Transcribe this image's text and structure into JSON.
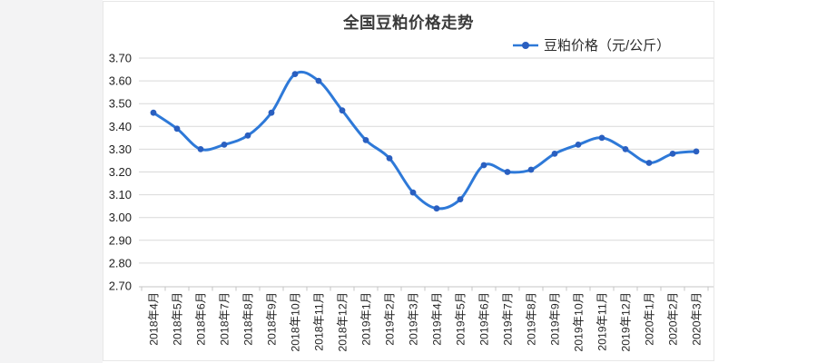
{
  "chart": {
    "title": "全国豆粕价格走势",
    "legend_label": "豆粕价格（元/公斤）"
  },
  "chart_data": {
    "type": "line",
    "title": "全国豆粕价格走势",
    "xlabel": "",
    "ylabel": "",
    "categories": [
      "2018年4月",
      "2018年5月",
      "2018年6月",
      "2018年7月",
      "2018年8月",
      "2018年9月",
      "2018年10月",
      "2018年11月",
      "2018年12月",
      "2019年1月",
      "2019年2月",
      "2019年3月",
      "2019年4月",
      "2019年5月",
      "2019年6月",
      "2019年7月",
      "2019年8月",
      "2019年9月",
      "2019年10月",
      "2019年11月",
      "2019年12月",
      "2020年1月",
      "2020年2月",
      "2020年3月"
    ],
    "series": [
      {
        "name": "豆粕价格（元/公斤）",
        "values": [
          3.46,
          3.39,
          3.3,
          3.32,
          3.36,
          3.46,
          3.63,
          3.6,
          3.47,
          3.34,
          3.26,
          3.11,
          3.04,
          3.08,
          3.23,
          3.2,
          3.21,
          3.28,
          3.32,
          3.35,
          3.3,
          3.24,
          3.28,
          3.29
        ]
      }
    ],
    "ylim": [
      2.7,
      3.7
    ],
    "y_tick_step": 0.1,
    "y_tick_labels": [
      "3.70",
      "3.60",
      "3.50",
      "3.40",
      "3.30",
      "3.20",
      "3.10",
      "3.00",
      "2.90",
      "2.80",
      "2.70"
    ],
    "grid": true,
    "legend_position": "top-right",
    "line_smooth": true,
    "markers": true,
    "colors": {
      "line": "#2e79d8",
      "marker": "#2a5fc0",
      "grid": "#d9d9d9",
      "axis": "#c4c4c4",
      "title_text": "#3a3a3a",
      "tick_text": "#222222",
      "card_bg": "#ffffff",
      "card_border": "#e7e7e7",
      "page_bg": "#f3f3f4"
    }
  }
}
